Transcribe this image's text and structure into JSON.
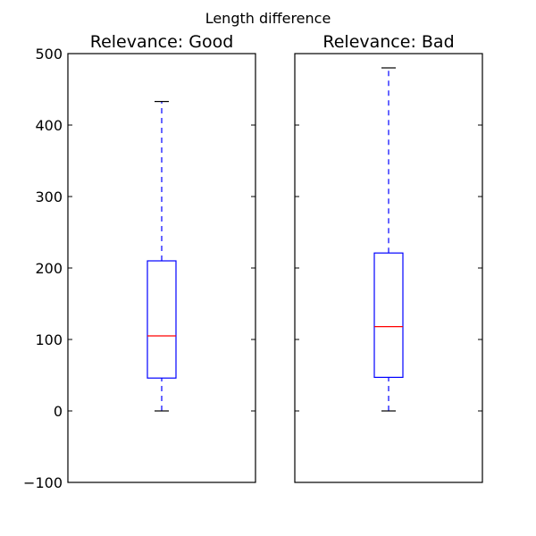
{
  "figure": {
    "title": "Length difference"
  },
  "chart_data": [
    {
      "type": "box",
      "title": "Relevance: Good",
      "xlabel": "",
      "ylabel": "",
      "ylim": [
        -100,
        500
      ],
      "yticks": [
        -100,
        0,
        100,
        200,
        300,
        400,
        500
      ],
      "ytick_labels": [
        "−100",
        "0",
        "100",
        "200",
        "300",
        "400",
        "500"
      ],
      "show_ytick_labels": true,
      "grid": false,
      "box": {
        "whisker_low": 0,
        "q1": 46,
        "median": 105,
        "q3": 210,
        "whisker_high": 433
      },
      "colors": {
        "box": "#0000ff",
        "median": "#ff0000",
        "whisker": "#0000ff",
        "cap": "#000000"
      }
    },
    {
      "type": "box",
      "title": "Relevance: Bad",
      "xlabel": "",
      "ylabel": "",
      "ylim": [
        -100,
        500
      ],
      "yticks": [
        -100,
        0,
        100,
        200,
        300,
        400,
        500
      ],
      "ytick_labels": [
        "−100",
        "0",
        "100",
        "200",
        "300",
        "400",
        "500"
      ],
      "show_ytick_labels": false,
      "grid": false,
      "box": {
        "whisker_low": 0,
        "q1": 47,
        "median": 118,
        "q3": 221,
        "whisker_high": 480
      },
      "colors": {
        "box": "#0000ff",
        "median": "#ff0000",
        "whisker": "#0000ff",
        "cap": "#000000"
      }
    }
  ]
}
